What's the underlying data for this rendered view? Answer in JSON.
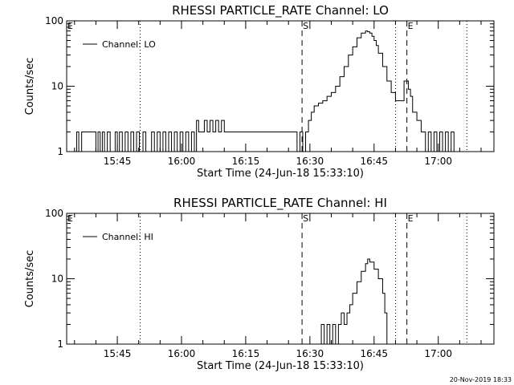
{
  "chart_data": [
    {
      "type": "line",
      "title": "RHESSI PARTICLE_RATE Channel: LO",
      "xlabel": "Start Time (24-Jun-18 15:33:10)",
      "ylabel": "Counts/sec",
      "y_scale": "log",
      "ylim": [
        1,
        100
      ],
      "y_ticks": [
        "1",
        "10",
        "100"
      ],
      "xlim": [
        "15:33:10",
        "17:13:00"
      ],
      "x_ticks": [
        "15:45",
        "16:00",
        "16:15",
        "16:30",
        "16:45",
        "17:00"
      ],
      "grid": false,
      "legend": "top-left",
      "series": [
        {
          "name": "Channel: LO",
          "x": [
            "15:34:40",
            "15:35:30",
            "15:36:00",
            "15:36:40",
            "15:40:00",
            "15:40:30",
            "15:41:00",
            "15:41:30",
            "15:42:00",
            "15:42:40",
            "15:43:20",
            "15:44:00",
            "15:44:30",
            "15:45:00",
            "15:45:30",
            "15:46:10",
            "15:46:50",
            "15:47:30",
            "15:48:10",
            "15:48:50",
            "15:49:30",
            "15:50:10",
            "15:51:00",
            "15:51:40",
            "15:52:20",
            "15:53:00",
            "15:53:40",
            "15:54:20",
            "15:55:00",
            "15:55:40",
            "15:56:20",
            "15:57:00",
            "15:57:40",
            "15:58:20",
            "15:59:00",
            "15:59:40",
            "16:00:20",
            "16:01:00",
            "16:01:40",
            "16:02:20",
            "16:03:00",
            "16:03:30",
            "16:04:00",
            "16:04:40",
            "16:05:20",
            "16:06:00",
            "16:06:40",
            "16:07:20",
            "16:08:00",
            "16:08:40",
            "16:09:20",
            "16:10:00",
            "16:10:40",
            "16:11:20",
            "16:12:00",
            "16:12:40",
            "16:13:20",
            "16:14:00",
            "16:16:00",
            "16:18:00",
            "16:20:00",
            "16:22:00",
            "16:24:00",
            "16:26:00",
            "16:27:00",
            "16:27:40",
            "16:28:20",
            "16:29:00",
            "16:29:40",
            "16:30:20",
            "16:31:00",
            "16:32:00",
            "16:33:00",
            "16:34:00",
            "16:35:00",
            "16:36:00",
            "16:37:00",
            "16:38:00",
            "16:39:00",
            "16:40:00",
            "16:41:00",
            "16:42:00",
            "16:43:00",
            "16:43:30",
            "16:44:00",
            "16:44:30",
            "16:45:00",
            "16:45:30",
            "16:46:00",
            "16:47:00",
            "16:48:00",
            "16:49:00",
            "16:50:00",
            "16:51:00",
            "16:52:00",
            "16:53:00",
            "16:53:30",
            "16:54:00",
            "16:55:00",
            "16:56:00",
            "16:57:00",
            "16:57:40",
            "16:58:20",
            "16:59:00",
            "16:59:40",
            "17:00:20",
            "17:01:00",
            "17:01:40",
            "17:02:20",
            "17:03:00",
            "17:03:40"
          ],
          "values": [
            1,
            2,
            1,
            2,
            1,
            2,
            1,
            2,
            1,
            2,
            1,
            1,
            2,
            1,
            2,
            1,
            2,
            1,
            2,
            1,
            2,
            1,
            2,
            1,
            1,
            2,
            1,
            2,
            1,
            2,
            1,
            2,
            1,
            2,
            1,
            2,
            1,
            2,
            1,
            2,
            1,
            3,
            2,
            2,
            3,
            2,
            3,
            2,
            3,
            2,
            3,
            2,
            2,
            2,
            2,
            2,
            2,
            2,
            2,
            2,
            2,
            2,
            2,
            2,
            1,
            2,
            1,
            2,
            3,
            4,
            5,
            5.5,
            6,
            7,
            8,
            10,
            14,
            20,
            30,
            40,
            55,
            65,
            70,
            68,
            65,
            58,
            50,
            42,
            32,
            20,
            12,
            8,
            6,
            6,
            12,
            9,
            7,
            4,
            3,
            2,
            1,
            2,
            1,
            2,
            1,
            2,
            1,
            2,
            1,
            2,
            1
          ]
        }
      ],
      "vertical_markers": [
        {
          "label": "E",
          "time": "15:33:10",
          "style": "dotted"
        },
        {
          "label": "",
          "time": "15:50:20",
          "style": "dotted"
        },
        {
          "label": "S",
          "time": "16:28:10",
          "style": "dashed"
        },
        {
          "label": "",
          "time": "16:50:00",
          "style": "dotted"
        },
        {
          "label": "E",
          "time": "16:52:40",
          "style": "dashed"
        },
        {
          "label": "",
          "time": "17:06:40",
          "style": "dotted"
        }
      ]
    },
    {
      "type": "line",
      "title": "RHESSI PARTICLE_RATE Channel: HI",
      "xlabel": "Start Time (24-Jun-18 15:33:10)",
      "ylabel": "Counts/sec",
      "y_scale": "log",
      "ylim": [
        1,
        100
      ],
      "y_ticks": [
        "1",
        "10",
        "100"
      ],
      "xlim": [
        "15:33:10",
        "17:13:00"
      ],
      "x_ticks": [
        "15:45",
        "16:00",
        "16:15",
        "16:30",
        "16:45",
        "17:00"
      ],
      "grid": false,
      "legend": "top-left",
      "series": [
        {
          "name": "Channel: HI",
          "x": [
            "16:32:00",
            "16:32:40",
            "16:33:20",
            "16:34:00",
            "16:34:40",
            "16:35:20",
            "16:36:00",
            "16:36:40",
            "16:37:20",
            "16:38:00",
            "16:38:40",
            "16:39:20",
            "16:40:00",
            "16:41:00",
            "16:42:00",
            "16:43:00",
            "16:43:30",
            "16:44:00",
            "16:45:00",
            "16:46:00",
            "16:47:00",
            "16:47:30",
            "16:48:00"
          ],
          "values": [
            1,
            2,
            1,
            2,
            1,
            2,
            1,
            2,
            3,
            2,
            3,
            4,
            6,
            9,
            13,
            17,
            20,
            18,
            14,
            10,
            6,
            3,
            1
          ]
        }
      ],
      "vertical_markers": [
        {
          "label": "E",
          "time": "15:33:10",
          "style": "dotted"
        },
        {
          "label": "",
          "time": "15:50:20",
          "style": "dotted"
        },
        {
          "label": "S",
          "time": "16:28:10",
          "style": "dashed"
        },
        {
          "label": "",
          "time": "16:50:00",
          "style": "dotted"
        },
        {
          "label": "E",
          "time": "16:52:40",
          "style": "dashed"
        },
        {
          "label": "",
          "time": "17:06:40",
          "style": "dotted"
        }
      ]
    }
  ],
  "footer": {
    "timestamp": "20-Nov-2019 18:33"
  }
}
